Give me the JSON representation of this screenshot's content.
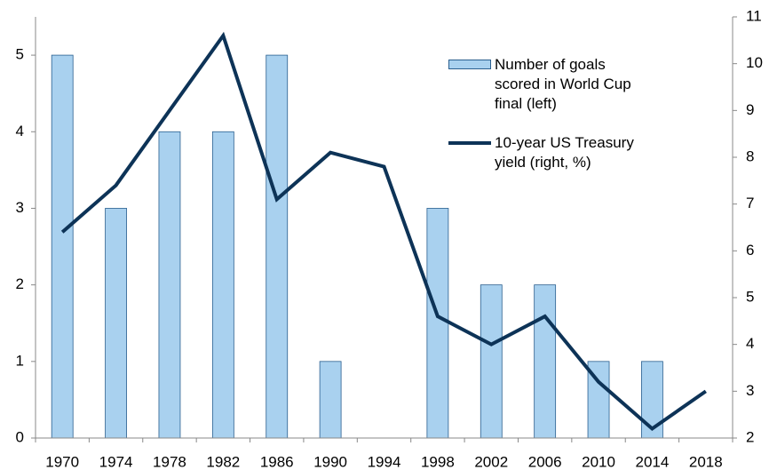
{
  "chart_data": {
    "type": "bar-line",
    "categories": [
      "1970",
      "1974",
      "1978",
      "1982",
      "1986",
      "1990",
      "1994",
      "1998",
      "2002",
      "2006",
      "2010",
      "2014",
      "2018"
    ],
    "series": [
      {
        "name": "Number of goals scored in World Cup final (left)",
        "type": "bar",
        "color": "#a9d1ef",
        "values": [
          5,
          3,
          4,
          4,
          5,
          1,
          0,
          3,
          2,
          2,
          1,
          1,
          null
        ]
      },
      {
        "name": "10-year US Treasury yield (right, %)",
        "type": "line",
        "axis": "y2",
        "color": "#0d3357",
        "values": [
          6.4,
          7.4,
          9.0,
          10.6,
          7.1,
          8.1,
          7.8,
          4.6,
          4.0,
          4.6,
          3.2,
          2.2,
          3.0
        ]
      }
    ],
    "ylim": [
      0,
      5.5
    ],
    "yticks": [
      0,
      1,
      2,
      3,
      4,
      5
    ],
    "y2lim": [
      2,
      11
    ],
    "y2ticks": [
      2,
      3,
      4,
      5,
      6,
      7,
      8,
      9,
      10,
      11
    ],
    "legend": "upper right"
  }
}
